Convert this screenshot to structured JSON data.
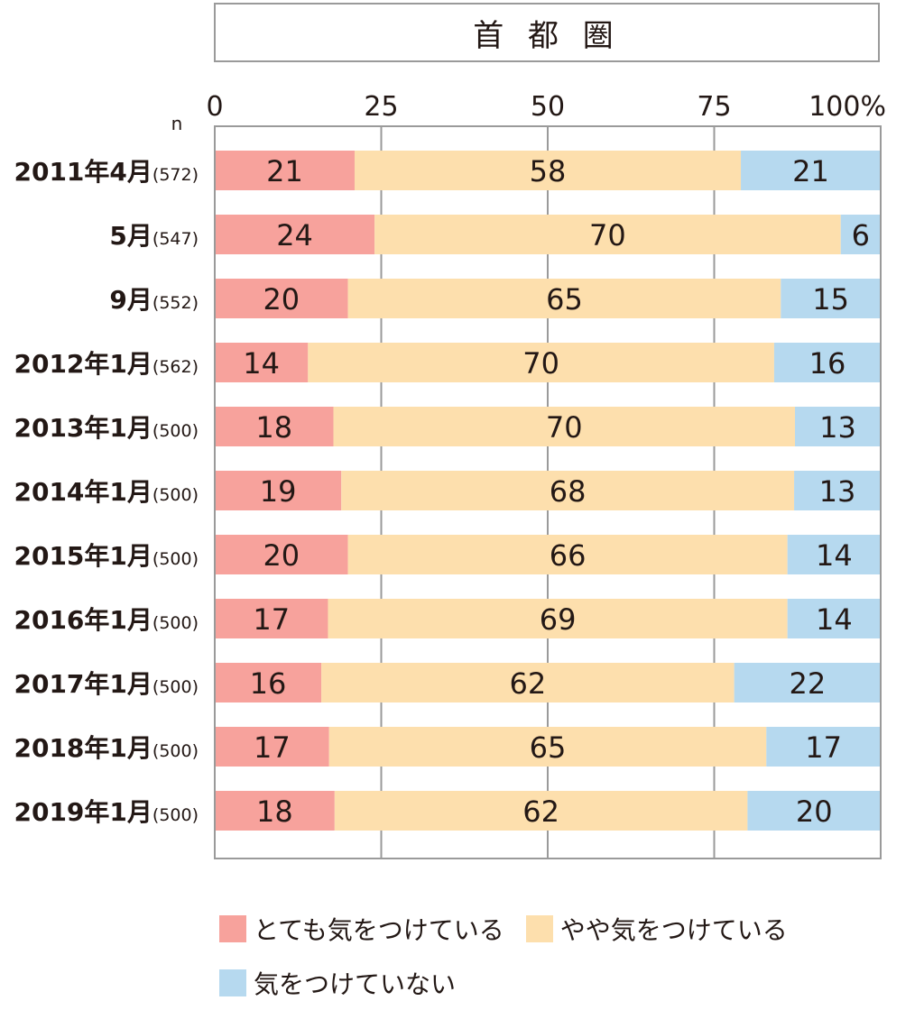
{
  "chart_data": {
    "type": "bar",
    "orientation": "horizontal",
    "stacked": true,
    "title": "首 都 圏",
    "n_label": "n",
    "categories": [
      "2011年4月",
      "5月",
      "9月",
      "2012年1月",
      "2013年1月",
      "2014年1月",
      "2015年1月",
      "2016年1月",
      "2017年1月",
      "2018年1月",
      "2019年1月"
    ],
    "n_values": [
      "(572)",
      "(547)",
      "(552)",
      "(562)",
      "(500)",
      "(500)",
      "(500)",
      "(500)",
      "(500)",
      "(500)",
      "(500)"
    ],
    "series": [
      {
        "name": "とても気をつけている",
        "color": "#f7a29c",
        "values": [
          21,
          24,
          20,
          14,
          18,
          19,
          20,
          17,
          16,
          17,
          18
        ]
      },
      {
        "name": "やや気をつけている",
        "color": "#fddfad",
        "values": [
          58,
          70,
          65,
          70,
          70,
          68,
          66,
          69,
          62,
          65,
          62
        ]
      },
      {
        "name": "気をつけていない",
        "color": "#b6d9ef",
        "values": [
          21,
          6,
          15,
          16,
          13,
          13,
          14,
          14,
          22,
          17,
          20
        ]
      }
    ],
    "x_ticks": [
      "0",
      "25",
      "50",
      "75",
      "100%"
    ],
    "xlim": [
      0,
      100
    ],
    "grid": true,
    "legend_position": "bottom"
  }
}
